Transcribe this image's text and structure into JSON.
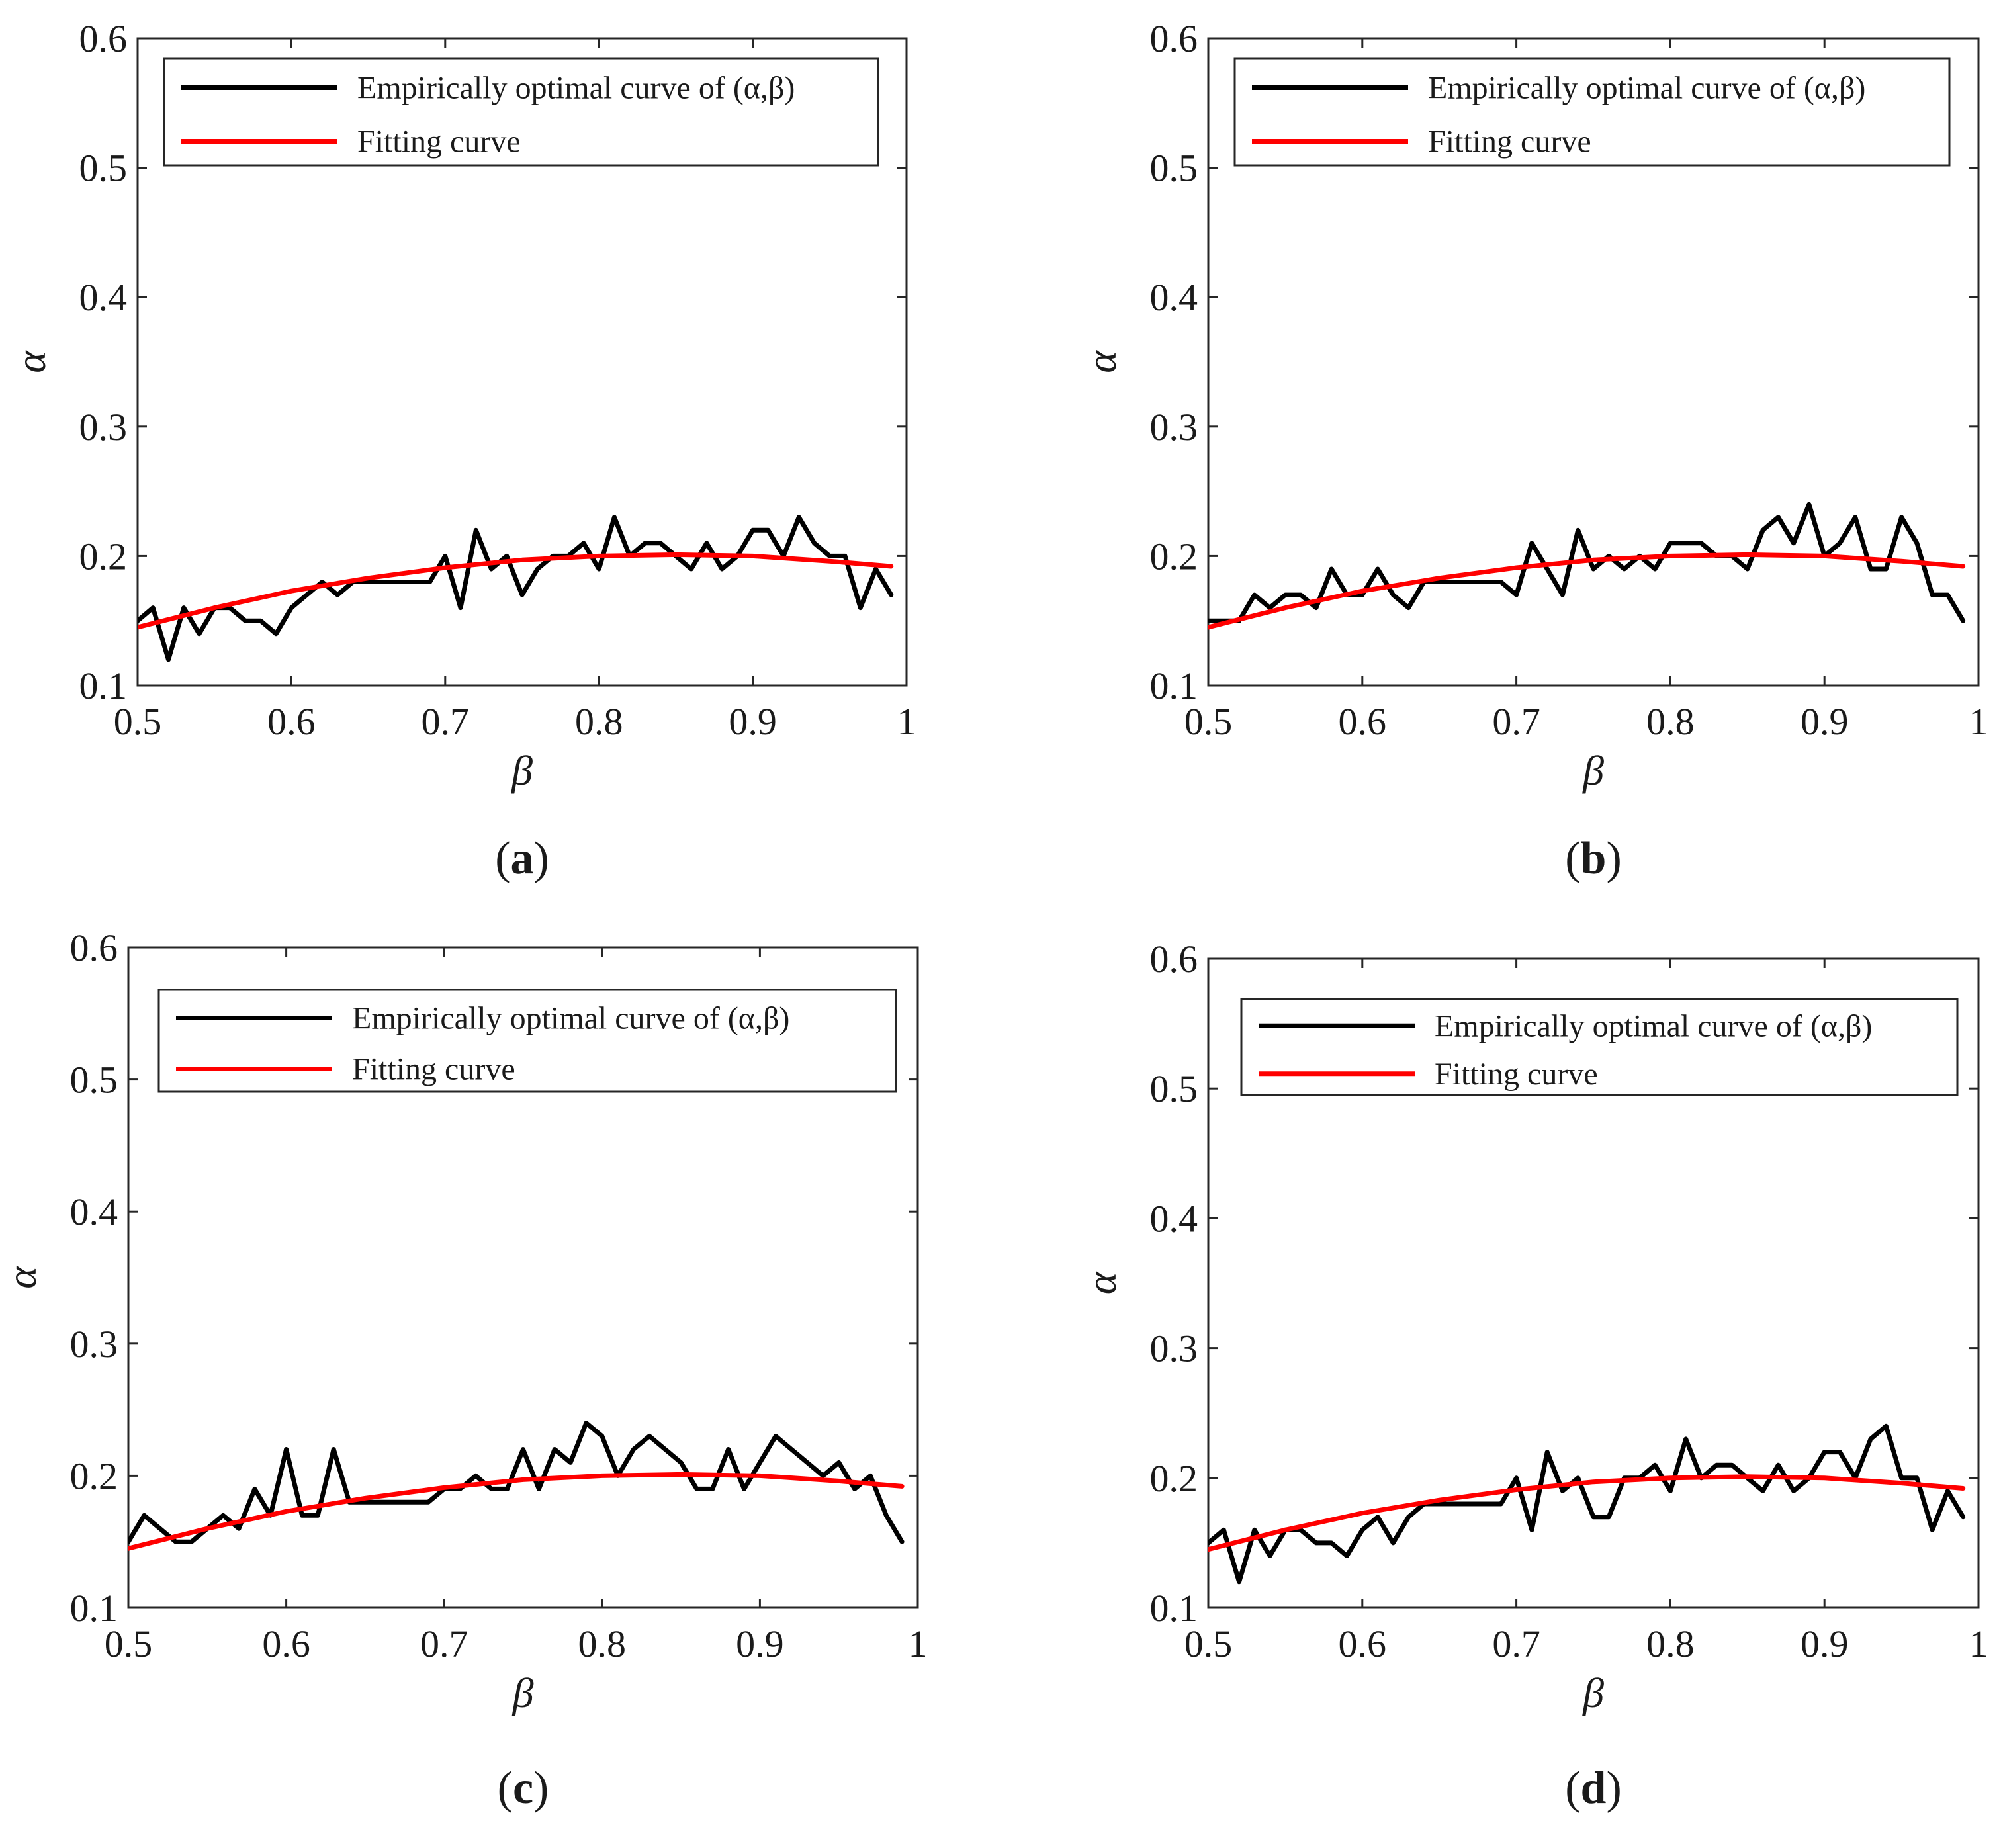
{
  "colors": {
    "empirical": "#000000",
    "fitting": "#ff0000",
    "axes": "#262626",
    "background": "#ffffff"
  },
  "chart_data": [
    {
      "type": "line",
      "panel": "a",
      "caption_open": "(",
      "caption_letter": "a",
      "caption_close": ")",
      "xlabel": "β",
      "ylabel": "α",
      "xlim": [
        0.5,
        1
      ],
      "ylim": [
        0.1,
        0.6
      ],
      "xticks": [
        0.5,
        0.6,
        0.7,
        0.8,
        0.9,
        1
      ],
      "xtick_labels": [
        "0.5",
        "0.6",
        "0.7",
        "0.8",
        "0.9",
        "1"
      ],
      "yticks": [
        0.1,
        0.2,
        0.3,
        0.4,
        0.5,
        0.6
      ],
      "ytick_labels": [
        "0.1",
        "0.2",
        "0.3",
        "0.4",
        "0.5",
        "0.6"
      ],
      "legend_position": "top",
      "series": [
        {
          "name": "Empirically optimal curve of (α,β)",
          "color": "#000000",
          "x": [
            0.5,
            0.51,
            0.52,
            0.53,
            0.54,
            0.55,
            0.56,
            0.57,
            0.58,
            0.59,
            0.6,
            0.61,
            0.62,
            0.63,
            0.64,
            0.65,
            0.66,
            0.67,
            0.68,
            0.69,
            0.7,
            0.71,
            0.72,
            0.73,
            0.74,
            0.75,
            0.76,
            0.77,
            0.78,
            0.79,
            0.8,
            0.81,
            0.82,
            0.83,
            0.84,
            0.85,
            0.86,
            0.87,
            0.88,
            0.89,
            0.9,
            0.91,
            0.92,
            0.93,
            0.94,
            0.95,
            0.96,
            0.97,
            0.98,
            0.99
          ],
          "y": [
            0.15,
            0.16,
            0.12,
            0.16,
            0.14,
            0.16,
            0.16,
            0.15,
            0.15,
            0.14,
            0.16,
            0.17,
            0.18,
            0.17,
            0.18,
            0.18,
            0.18,
            0.18,
            0.18,
            0.18,
            0.2,
            0.16,
            0.22,
            0.19,
            0.2,
            0.17,
            0.19,
            0.2,
            0.2,
            0.21,
            0.19,
            0.23,
            0.2,
            0.21,
            0.21,
            0.2,
            0.19,
            0.21,
            0.19,
            0.2,
            0.22,
            0.22,
            0.2,
            0.23,
            0.21,
            0.2,
            0.2,
            0.16,
            0.19,
            0.17
          ]
        },
        {
          "name": "Fitting curve",
          "color": "#ff0000",
          "x": [
            0.5,
            0.55,
            0.6,
            0.65,
            0.7,
            0.75,
            0.8,
            0.85,
            0.9,
            0.95,
            0.99
          ],
          "y": [
            0.145,
            0.16,
            0.173,
            0.183,
            0.191,
            0.197,
            0.2,
            0.201,
            0.2,
            0.196,
            0.192
          ]
        }
      ]
    },
    {
      "type": "line",
      "panel": "b",
      "caption_open": "(",
      "caption_letter": "b",
      "caption_close": ")",
      "xlabel": "β",
      "ylabel": "α",
      "xlim": [
        0.5,
        1
      ],
      "ylim": [
        0.1,
        0.6
      ],
      "xticks": [
        0.5,
        0.6,
        0.7,
        0.8,
        0.9,
        1
      ],
      "xtick_labels": [
        "0.5",
        "0.6",
        "0.7",
        "0.8",
        "0.9",
        "1"
      ],
      "yticks": [
        0.1,
        0.2,
        0.3,
        0.4,
        0.5,
        0.6
      ],
      "ytick_labels": [
        "0.1",
        "0.2",
        "0.3",
        "0.4",
        "0.5",
        "0.6"
      ],
      "legend_position": "top",
      "series": [
        {
          "name": "Empirically optimal curve of (α,β)",
          "color": "#000000",
          "x": [
            0.5,
            0.51,
            0.52,
            0.53,
            0.54,
            0.55,
            0.56,
            0.57,
            0.58,
            0.59,
            0.6,
            0.61,
            0.62,
            0.63,
            0.64,
            0.65,
            0.66,
            0.67,
            0.68,
            0.69,
            0.7,
            0.71,
            0.72,
            0.73,
            0.74,
            0.75,
            0.76,
            0.77,
            0.78,
            0.79,
            0.8,
            0.81,
            0.82,
            0.83,
            0.84,
            0.85,
            0.86,
            0.87,
            0.88,
            0.89,
            0.9,
            0.91,
            0.92,
            0.93,
            0.94,
            0.95,
            0.96,
            0.97,
            0.98,
            0.99
          ],
          "y": [
            0.15,
            0.15,
            0.15,
            0.17,
            0.16,
            0.17,
            0.17,
            0.16,
            0.19,
            0.17,
            0.17,
            0.19,
            0.17,
            0.16,
            0.18,
            0.18,
            0.18,
            0.18,
            0.18,
            0.18,
            0.17,
            0.21,
            0.19,
            0.17,
            0.22,
            0.19,
            0.2,
            0.19,
            0.2,
            0.19,
            0.21,
            0.21,
            0.21,
            0.2,
            0.2,
            0.19,
            0.22,
            0.23,
            0.21,
            0.24,
            0.2,
            0.21,
            0.23,
            0.19,
            0.19,
            0.23,
            0.21,
            0.17,
            0.17,
            0.15
          ]
        },
        {
          "name": "Fitting curve",
          "color": "#ff0000",
          "x": [
            0.5,
            0.55,
            0.6,
            0.65,
            0.7,
            0.75,
            0.8,
            0.85,
            0.9,
            0.95,
            0.99
          ],
          "y": [
            0.145,
            0.16,
            0.173,
            0.183,
            0.191,
            0.197,
            0.2,
            0.201,
            0.2,
            0.196,
            0.192
          ]
        }
      ]
    },
    {
      "type": "line",
      "panel": "c",
      "caption_open": "(",
      "caption_letter": "c",
      "caption_close": ")",
      "xlabel": "β",
      "ylabel": "α",
      "xlim": [
        0.5,
        1
      ],
      "ylim": [
        0.1,
        0.6
      ],
      "xticks": [
        0.5,
        0.6,
        0.7,
        0.8,
        0.9,
        1
      ],
      "xtick_labels": [
        "0.5",
        "0.6",
        "0.7",
        "0.8",
        "0.9",
        "1"
      ],
      "yticks": [
        0.1,
        0.2,
        0.3,
        0.4,
        0.5,
        0.6
      ],
      "ytick_labels": [
        "0.1",
        "0.2",
        "0.3",
        "0.4",
        "0.5",
        "0.6"
      ],
      "legend_position": "top",
      "series": [
        {
          "name": "Empirically optimal curve of (α,β)",
          "color": "#000000",
          "x": [
            0.5,
            0.51,
            0.52,
            0.53,
            0.54,
            0.55,
            0.56,
            0.57,
            0.58,
            0.59,
            0.6,
            0.61,
            0.62,
            0.63,
            0.64,
            0.65,
            0.66,
            0.67,
            0.68,
            0.69,
            0.7,
            0.71,
            0.72,
            0.73,
            0.74,
            0.75,
            0.76,
            0.77,
            0.78,
            0.79,
            0.8,
            0.81,
            0.82,
            0.83,
            0.84,
            0.85,
            0.86,
            0.87,
            0.88,
            0.89,
            0.9,
            0.91,
            0.92,
            0.93,
            0.94,
            0.95,
            0.96,
            0.97,
            0.98,
            0.99
          ],
          "y": [
            0.15,
            0.17,
            0.16,
            0.15,
            0.15,
            0.16,
            0.17,
            0.16,
            0.19,
            0.17,
            0.22,
            0.17,
            0.17,
            0.22,
            0.18,
            0.18,
            0.18,
            0.18,
            0.18,
            0.18,
            0.19,
            0.19,
            0.2,
            0.19,
            0.19,
            0.22,
            0.19,
            0.22,
            0.21,
            0.24,
            0.23,
            0.2,
            0.22,
            0.23,
            0.22,
            0.21,
            0.19,
            0.19,
            0.22,
            0.19,
            0.21,
            0.23,
            0.22,
            0.21,
            0.2,
            0.21,
            0.19,
            0.2,
            0.17,
            0.15
          ]
        },
        {
          "name": "Fitting curve",
          "color": "#ff0000",
          "x": [
            0.5,
            0.55,
            0.6,
            0.65,
            0.7,
            0.75,
            0.8,
            0.85,
            0.9,
            0.95,
            0.99
          ],
          "y": [
            0.145,
            0.16,
            0.173,
            0.183,
            0.191,
            0.197,
            0.2,
            0.201,
            0.2,
            0.196,
            0.192
          ]
        }
      ]
    },
    {
      "type": "line",
      "panel": "d",
      "caption_open": "(",
      "caption_letter": "d",
      "caption_close": ")",
      "xlabel": "β",
      "ylabel": "α",
      "xlim": [
        0.5,
        1
      ],
      "ylim": [
        0.1,
        0.6
      ],
      "xticks": [
        0.5,
        0.6,
        0.7,
        0.8,
        0.9,
        1
      ],
      "xtick_labels": [
        "0.5",
        "0.6",
        "0.7",
        "0.8",
        "0.9",
        "1"
      ],
      "yticks": [
        0.1,
        0.2,
        0.3,
        0.4,
        0.5,
        0.6
      ],
      "ytick_labels": [
        "0.1",
        "0.2",
        "0.3",
        "0.4",
        "0.5",
        "0.6"
      ],
      "legend_position": "top",
      "series": [
        {
          "name": "Empirically optimal curve of (α,β)",
          "color": "#000000",
          "x": [
            0.5,
            0.51,
            0.52,
            0.53,
            0.54,
            0.55,
            0.56,
            0.57,
            0.58,
            0.59,
            0.6,
            0.61,
            0.62,
            0.63,
            0.64,
            0.65,
            0.66,
            0.67,
            0.68,
            0.69,
            0.7,
            0.71,
            0.72,
            0.73,
            0.74,
            0.75,
            0.76,
            0.77,
            0.78,
            0.79,
            0.8,
            0.81,
            0.82,
            0.83,
            0.84,
            0.85,
            0.86,
            0.87,
            0.88,
            0.89,
            0.9,
            0.91,
            0.92,
            0.93,
            0.94,
            0.95,
            0.96,
            0.97,
            0.98,
            0.99
          ],
          "y": [
            0.15,
            0.16,
            0.12,
            0.16,
            0.14,
            0.16,
            0.16,
            0.15,
            0.15,
            0.14,
            0.16,
            0.17,
            0.15,
            0.17,
            0.18,
            0.18,
            0.18,
            0.18,
            0.18,
            0.18,
            0.2,
            0.16,
            0.22,
            0.19,
            0.2,
            0.17,
            0.17,
            0.2,
            0.2,
            0.21,
            0.19,
            0.23,
            0.2,
            0.21,
            0.21,
            0.2,
            0.19,
            0.21,
            0.19,
            0.2,
            0.22,
            0.22,
            0.2,
            0.23,
            0.24,
            0.2,
            0.2,
            0.16,
            0.19,
            0.17
          ]
        },
        {
          "name": "Fitting curve",
          "color": "#ff0000",
          "x": [
            0.5,
            0.55,
            0.6,
            0.65,
            0.7,
            0.75,
            0.8,
            0.85,
            0.9,
            0.95,
            0.99
          ],
          "y": [
            0.145,
            0.16,
            0.173,
            0.183,
            0.191,
            0.197,
            0.2,
            0.201,
            0.2,
            0.196,
            0.192
          ]
        }
      ]
    }
  ]
}
